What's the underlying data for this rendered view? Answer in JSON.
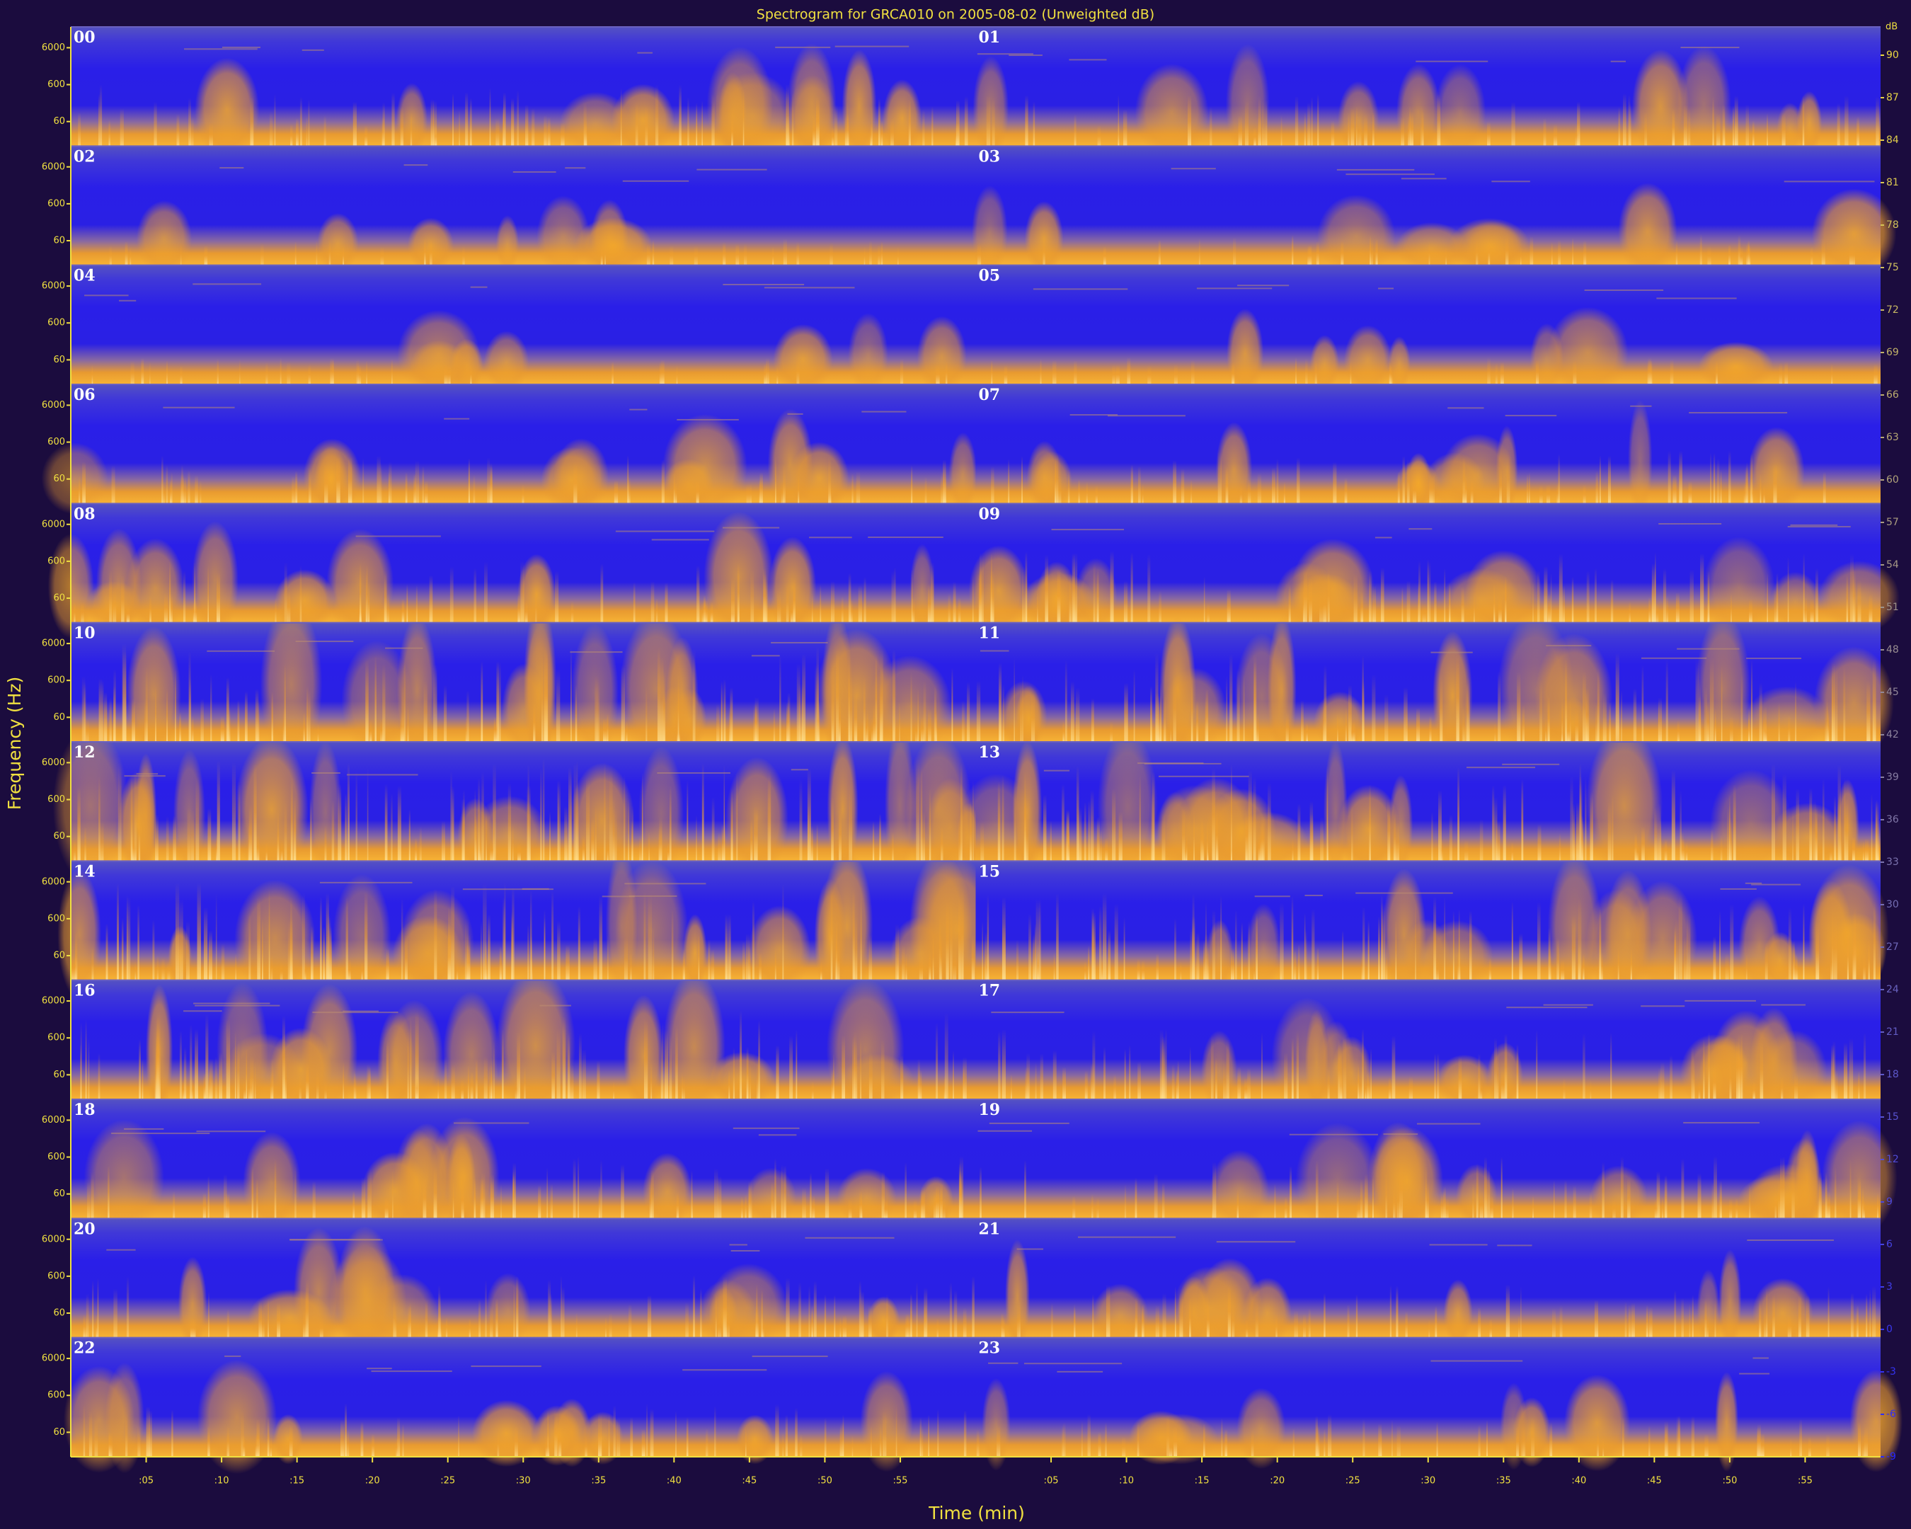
{
  "chart_data": {
    "type": "spectrogram",
    "title": "Spectrogram for GRCA010 on 2005-08-02 (Unweighted dB)",
    "xlabel": "Time (min)",
    "ylabel": "Frequency (Hz)",
    "colorbar_label": "dB",
    "hours": [
      "00",
      "01",
      "02",
      "03",
      "04",
      "05",
      "06",
      "07",
      "08",
      "09",
      "10",
      "11",
      "12",
      "13",
      "14",
      "15",
      "16",
      "17",
      "18",
      "19",
      "20",
      "21",
      "22",
      "23"
    ],
    "xlim": [
      0,
      60
    ],
    "xticks": [
      {
        "value": 5,
        "label": ":05"
      },
      {
        "value": 10,
        "label": ":10"
      },
      {
        "value": 15,
        "label": ":15"
      },
      {
        "value": 20,
        "label": ":20"
      },
      {
        "value": 25,
        "label": ":25"
      },
      {
        "value": 30,
        "label": ":30"
      },
      {
        "value": 35,
        "label": ":35"
      },
      {
        "value": 40,
        "label": ":40"
      },
      {
        "value": 45,
        "label": ":45"
      },
      {
        "value": 50,
        "label": ":50"
      },
      {
        "value": 55,
        "label": ":55"
      }
    ],
    "yscale": "log",
    "ylim": [
      13,
      22000
    ],
    "yticks": [
      60,
      600,
      6000
    ],
    "clim": [
      -9,
      92
    ],
    "cticks": [
      90,
      87,
      84,
      81,
      78,
      75,
      72,
      69,
      66,
      63,
      60,
      57,
      54,
      51,
      48,
      45,
      42,
      39,
      36,
      33,
      30,
      27,
      24,
      21,
      18,
      15,
      12,
      9,
      6,
      3,
      0,
      -3,
      -6,
      -9
    ]
  }
}
